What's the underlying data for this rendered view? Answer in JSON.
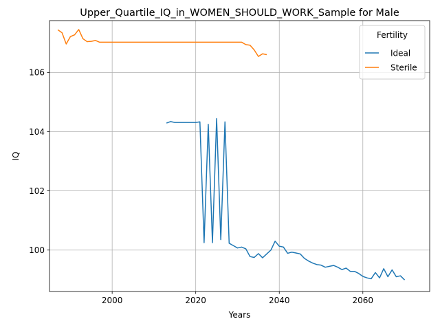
{
  "chart_data": {
    "type": "line",
    "title": "Upper_Quartile_IQ_in_WOMEN_SHOULD_WORK_Sample for Male",
    "xlabel": "Years",
    "ylabel": "IQ",
    "xlim": [
      1985,
      2076
    ],
    "ylim": [
      98.6,
      107.75
    ],
    "xticks": [
      2000,
      2020,
      2040,
      2060
    ],
    "yticks": [
      100,
      102,
      104,
      106
    ],
    "grid": true,
    "legend": {
      "title": "Fertility",
      "position": "top-right"
    },
    "series": [
      {
        "name": "Ideal",
        "color": "#1f77b4",
        "x": [
          2013,
          2014,
          2015,
          2016,
          2017,
          2018,
          2019,
          2020,
          2021,
          2022,
          2023,
          2024,
          2025,
          2026,
          2027,
          2028,
          2029,
          2030,
          2031,
          2032,
          2033,
          2034,
          2035,
          2036,
          2037,
          2038,
          2039,
          2040,
          2041,
          2042,
          2043,
          2044,
          2045,
          2046,
          2047,
          2048,
          2049,
          2050,
          2051,
          2052,
          2053,
          2054,
          2055,
          2056,
          2057,
          2058,
          2059,
          2060,
          2061,
          2062,
          2063,
          2064,
          2065,
          2066,
          2067,
          2068,
          2069,
          2070
        ],
        "y": [
          104.29,
          104.34,
          104.31,
          104.31,
          104.31,
          104.31,
          104.31,
          104.31,
          104.33,
          100.25,
          104.25,
          100.25,
          104.44,
          100.35,
          104.33,
          100.23,
          100.15,
          100.07,
          100.1,
          100.04,
          99.78,
          99.75,
          99.88,
          99.74,
          99.87,
          100.0,
          100.3,
          100.13,
          100.1,
          99.89,
          99.93,
          99.9,
          99.87,
          99.72,
          99.63,
          99.56,
          99.51,
          99.49,
          99.42,
          99.45,
          99.48,
          99.42,
          99.34,
          99.39,
          99.28,
          99.28,
          99.21,
          99.11,
          99.06,
          99.03,
          99.24,
          99.06,
          99.37,
          99.1,
          99.33,
          99.1,
          99.13,
          98.99
        ]
      },
      {
        "name": "Sterile",
        "color": "#ff7f0e",
        "x": [
          1987,
          1988,
          1989,
          1990,
          1991,
          1992,
          1993,
          1994,
          1995,
          1996,
          1997,
          1998,
          1999,
          2000,
          2001,
          2002,
          2003,
          2004,
          2005,
          2006,
          2007,
          2008,
          2009,
          2010,
          2011,
          2012,
          2013,
          2014,
          2015,
          2016,
          2017,
          2018,
          2019,
          2020,
          2021,
          2022,
          2023,
          2024,
          2025,
          2026,
          2027,
          2028,
          2029,
          2030,
          2031,
          2032,
          2033,
          2034,
          2035,
          2036,
          2037
        ],
        "y": [
          107.44,
          107.34,
          106.96,
          107.21,
          107.27,
          107.45,
          107.14,
          107.04,
          107.05,
          107.08,
          107.02,
          107.02,
          107.02,
          107.02,
          107.02,
          107.02,
          107.02,
          107.02,
          107.02,
          107.02,
          107.02,
          107.02,
          107.02,
          107.02,
          107.02,
          107.02,
          107.02,
          107.02,
          107.02,
          107.02,
          107.02,
          107.02,
          107.02,
          107.02,
          107.02,
          107.02,
          107.02,
          107.02,
          107.02,
          107.02,
          107.02,
          107.02,
          107.02,
          107.02,
          107.02,
          106.94,
          106.92,
          106.76,
          106.54,
          106.63,
          106.6
        ]
      }
    ]
  }
}
